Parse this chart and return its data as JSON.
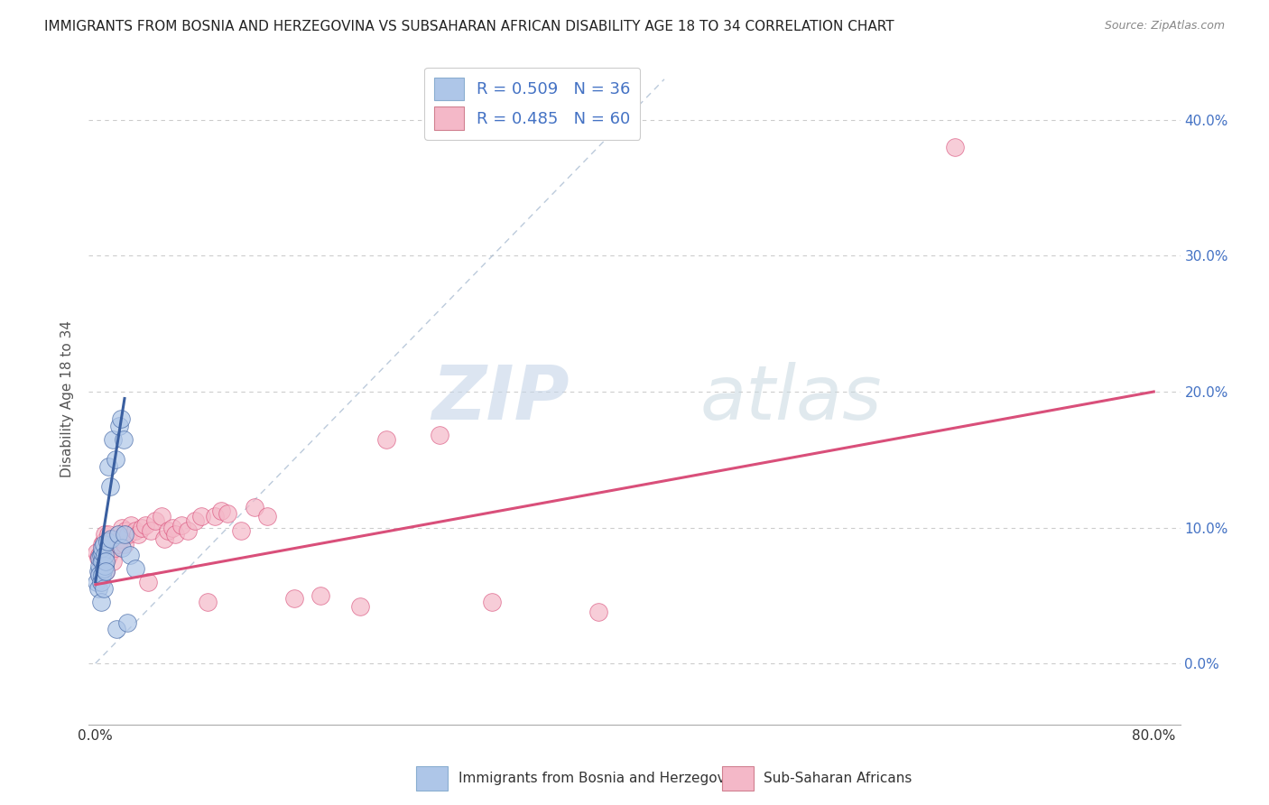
{
  "title": "IMMIGRANTS FROM BOSNIA AND HERZEGOVINA VS SUBSAHARAN AFRICAN DISABILITY AGE 18 TO 34 CORRELATION CHART",
  "source": "Source: ZipAtlas.com",
  "ylabel": "Disability Age 18 to 34",
  "xlim": [
    -0.005,
    0.82
  ],
  "ylim": [
    -0.045,
    0.435
  ],
  "yticks": [
    0.0,
    0.1,
    0.2,
    0.3,
    0.4
  ],
  "ytick_labels_right": [
    "0.0%",
    "10.0%",
    "20.0%",
    "30.0%",
    "40.0%"
  ],
  "legend_color1": "#aec6e8",
  "legend_color2": "#f4b8c8",
  "scatter_color1": "#aec6e8",
  "scatter_color2": "#f4b8c8",
  "line_color1": "#3a5fa0",
  "line_color2": "#d94f7a",
  "ref_line_color": "#9fb4cc",
  "watermark_zip_color": "#c8d4e8",
  "watermark_atlas_color": "#d0dce8",
  "background_color": "#ffffff",
  "bosnia_x": [
    0.001,
    0.002,
    0.002,
    0.003,
    0.003,
    0.003,
    0.004,
    0.004,
    0.004,
    0.005,
    0.005,
    0.005,
    0.005,
    0.006,
    0.006,
    0.006,
    0.007,
    0.007,
    0.008,
    0.008,
    0.009,
    0.01,
    0.011,
    0.012,
    0.013,
    0.015,
    0.016,
    0.017,
    0.018,
    0.019,
    0.02,
    0.021,
    0.022,
    0.024,
    0.026,
    0.03
  ],
  "bosnia_y": [
    0.06,
    0.055,
    0.068,
    0.072,
    0.078,
    0.065,
    0.08,
    0.06,
    0.045,
    0.075,
    0.082,
    0.085,
    0.065,
    0.07,
    0.088,
    0.055,
    0.072,
    0.08,
    0.075,
    0.068,
    0.09,
    0.145,
    0.13,
    0.092,
    0.165,
    0.15,
    0.025,
    0.095,
    0.175,
    0.18,
    0.085,
    0.165,
    0.095,
    0.03,
    0.08,
    0.07
  ],
  "subsaharan_x": [
    0.001,
    0.002,
    0.003,
    0.003,
    0.004,
    0.005,
    0.005,
    0.006,
    0.006,
    0.007,
    0.008,
    0.008,
    0.009,
    0.01,
    0.01,
    0.011,
    0.012,
    0.013,
    0.014,
    0.015,
    0.016,
    0.017,
    0.018,
    0.019,
    0.02,
    0.022,
    0.023,
    0.025,
    0.027,
    0.03,
    0.032,
    0.035,
    0.038,
    0.04,
    0.042,
    0.045,
    0.05,
    0.052,
    0.055,
    0.058,
    0.06,
    0.065,
    0.07,
    0.075,
    0.08,
    0.085,
    0.09,
    0.095,
    0.1,
    0.11,
    0.12,
    0.13,
    0.15,
    0.17,
    0.2,
    0.22,
    0.26,
    0.3,
    0.38,
    0.65
  ],
  "subsaharan_y": [
    0.082,
    0.078,
    0.08,
    0.065,
    0.075,
    0.07,
    0.088,
    0.072,
    0.09,
    0.095,
    0.068,
    0.085,
    0.078,
    0.08,
    0.095,
    0.082,
    0.088,
    0.075,
    0.092,
    0.085,
    0.09,
    0.088,
    0.095,
    0.092,
    0.1,
    0.088,
    0.098,
    0.095,
    0.102,
    0.098,
    0.095,
    0.1,
    0.102,
    0.06,
    0.098,
    0.105,
    0.108,
    0.092,
    0.098,
    0.1,
    0.095,
    0.102,
    0.098,
    0.105,
    0.108,
    0.045,
    0.108,
    0.112,
    0.11,
    0.098,
    0.115,
    0.108,
    0.048,
    0.05,
    0.042,
    0.165,
    0.168,
    0.045,
    0.038,
    0.38
  ],
  "bosnia_line_x": [
    0.0,
    0.022
  ],
  "bosnia_line_y": [
    0.06,
    0.195
  ],
  "subsaharan_line_x": [
    0.0,
    0.8
  ],
  "subsaharan_line_y": [
    0.058,
    0.2
  ],
  "ref_line_x": [
    0.0,
    0.43
  ],
  "ref_line_y": [
    0.0,
    0.43
  ]
}
